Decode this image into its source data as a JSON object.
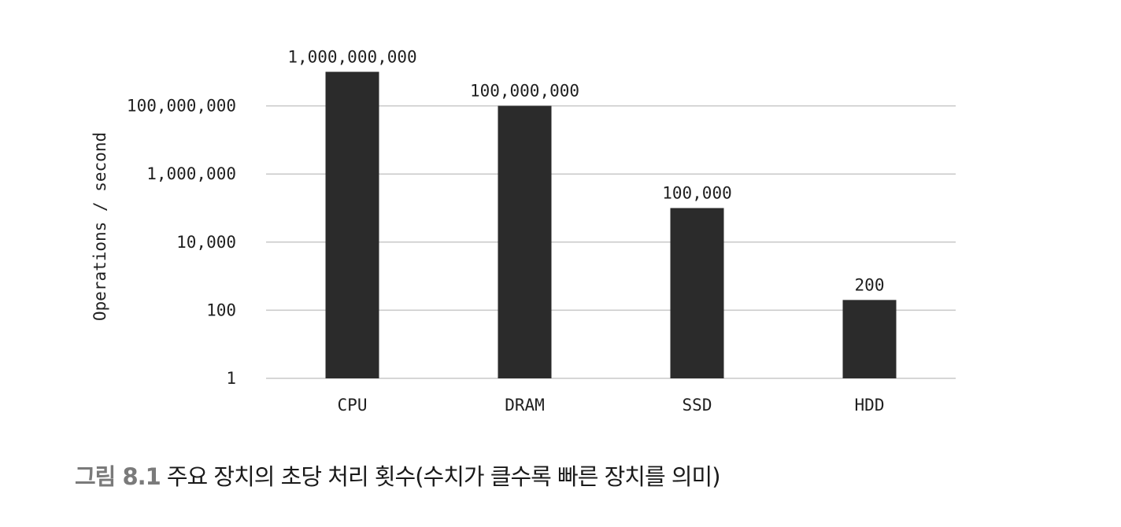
{
  "chart_data": {
    "type": "bar",
    "categories": [
      "CPU",
      "DRAM",
      "SSD",
      "HDD"
    ],
    "values": [
      1000000000,
      100000000,
      100000,
      200
    ],
    "data_labels": [
      "1,000,000,000",
      "100,000,000",
      "100,000",
      "200"
    ],
    "ylabel": "Operations / second",
    "yscale": "log",
    "ylim": [
      1,
      1000000000
    ],
    "yticks": [
      1,
      100,
      10000,
      1000000,
      100000000
    ],
    "ytick_labels": [
      "1",
      "100",
      "10,000",
      "1,000,000",
      "100,000,000"
    ],
    "grid": true,
    "bar_color": "#2b2b2b",
    "grid_color": "#c8c8c8"
  },
  "caption": {
    "figure_number": "그림 8.1",
    "text": "주요 장치의 초당 처리 횟수(수치가 클수록 빠른 장치를 의미)"
  }
}
